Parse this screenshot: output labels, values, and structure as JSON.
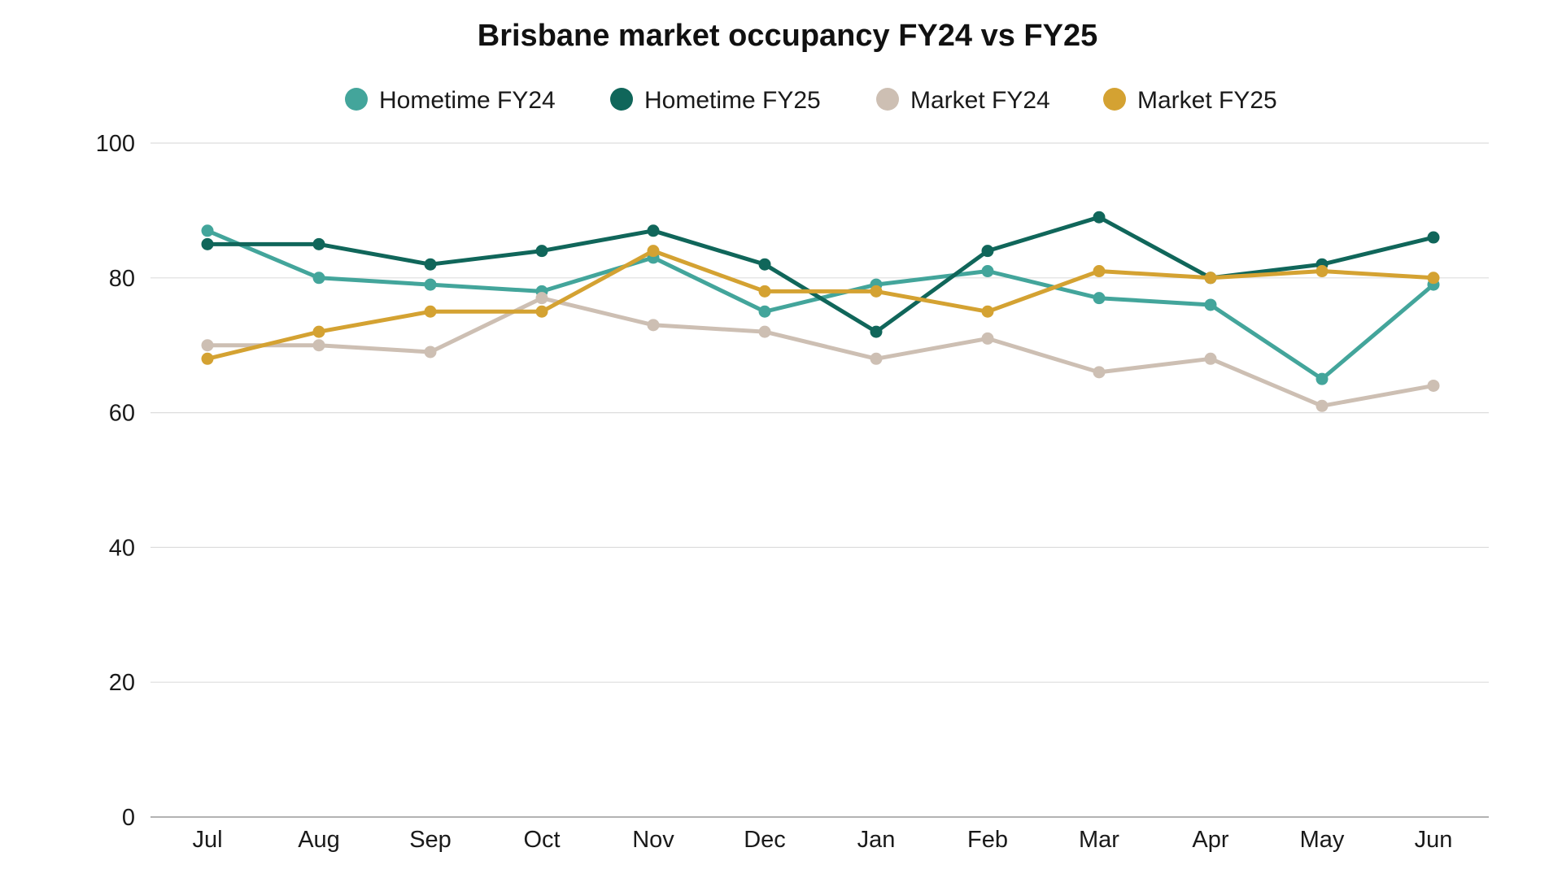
{
  "chart_data": {
    "type": "line",
    "title": "Brisbane market occupancy FY24 vs FY25",
    "xlabel": "",
    "ylabel": "",
    "categories": [
      "Jul",
      "Aug",
      "Sep",
      "Oct",
      "Nov",
      "Dec",
      "Jan",
      "Feb",
      "Mar",
      "Apr",
      "May",
      "Jun"
    ],
    "ylim": [
      0,
      100
    ],
    "yticks": [
      0,
      20,
      40,
      60,
      80,
      100
    ],
    "grid": true,
    "legend_position": "top-center",
    "series": [
      {
        "name": "Hometime FY24",
        "color": "#43a59b",
        "values": [
          87,
          80,
          79,
          78,
          83,
          75,
          79,
          81,
          77,
          76,
          65,
          79
        ]
      },
      {
        "name": "Hometime FY25",
        "color": "#10665a",
        "values": [
          85,
          85,
          82,
          84,
          87,
          82,
          72,
          84,
          89,
          80,
          82,
          86
        ]
      },
      {
        "name": "Market FY24",
        "color": "#cdbfb3",
        "values": [
          70,
          70,
          69,
          77,
          73,
          72,
          68,
          71,
          66,
          68,
          61,
          64
        ]
      },
      {
        "name": "Market FY25",
        "color": "#d4a232",
        "values": [
          68,
          72,
          75,
          75,
          84,
          78,
          78,
          75,
          81,
          80,
          81,
          80
        ]
      }
    ]
  }
}
